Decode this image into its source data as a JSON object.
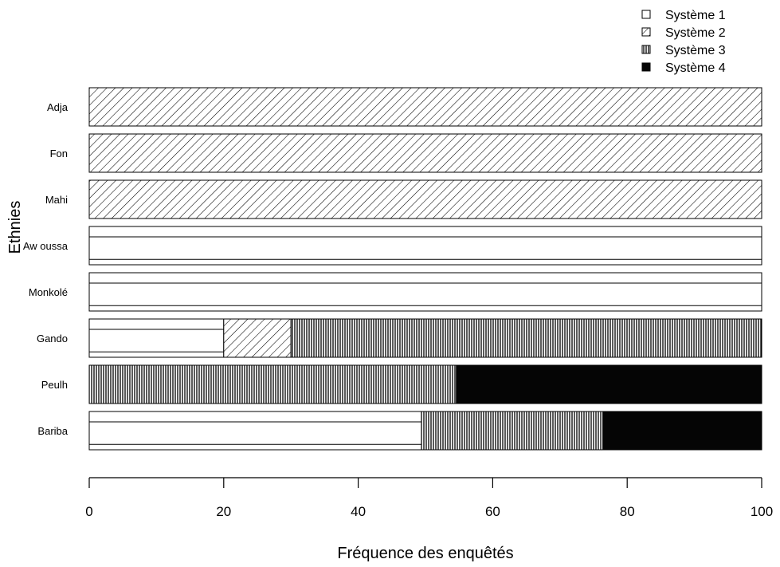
{
  "chart_data": {
    "type": "bar",
    "orientation": "horizontal",
    "stacked": true,
    "title": "",
    "xlabel": "Fréquence des enquêtés",
    "ylabel": "Ethnies",
    "xlim": [
      0,
      100
    ],
    "x_ticks": [
      "0",
      "20",
      "40",
      "60",
      "80",
      "100"
    ],
    "grid": false,
    "legend_position": "top-right",
    "categories": [
      "Adja",
      "Fon",
      "Mahi",
      "Aw oussa",
      "Monkolé",
      "Gando",
      "Peulh",
      "Bariba"
    ],
    "series": [
      {
        "name": "Système 1",
        "pattern": "none",
        "values": [
          0,
          0,
          0,
          100,
          100,
          20,
          0,
          49.4
        ]
      },
      {
        "name": "Système 2",
        "pattern": "diagonal-hatch",
        "values": [
          100,
          100,
          100,
          0,
          0,
          10,
          0,
          0
        ]
      },
      {
        "name": "Système 3",
        "pattern": "vertical-lines",
        "values": [
          0,
          0,
          0,
          0,
          0,
          70,
          54.6,
          27
        ]
      },
      {
        "name": "Système 4",
        "pattern": "solid-black",
        "values": [
          0,
          0,
          0,
          0,
          0,
          0,
          45.4,
          23.6
        ]
      }
    ]
  }
}
